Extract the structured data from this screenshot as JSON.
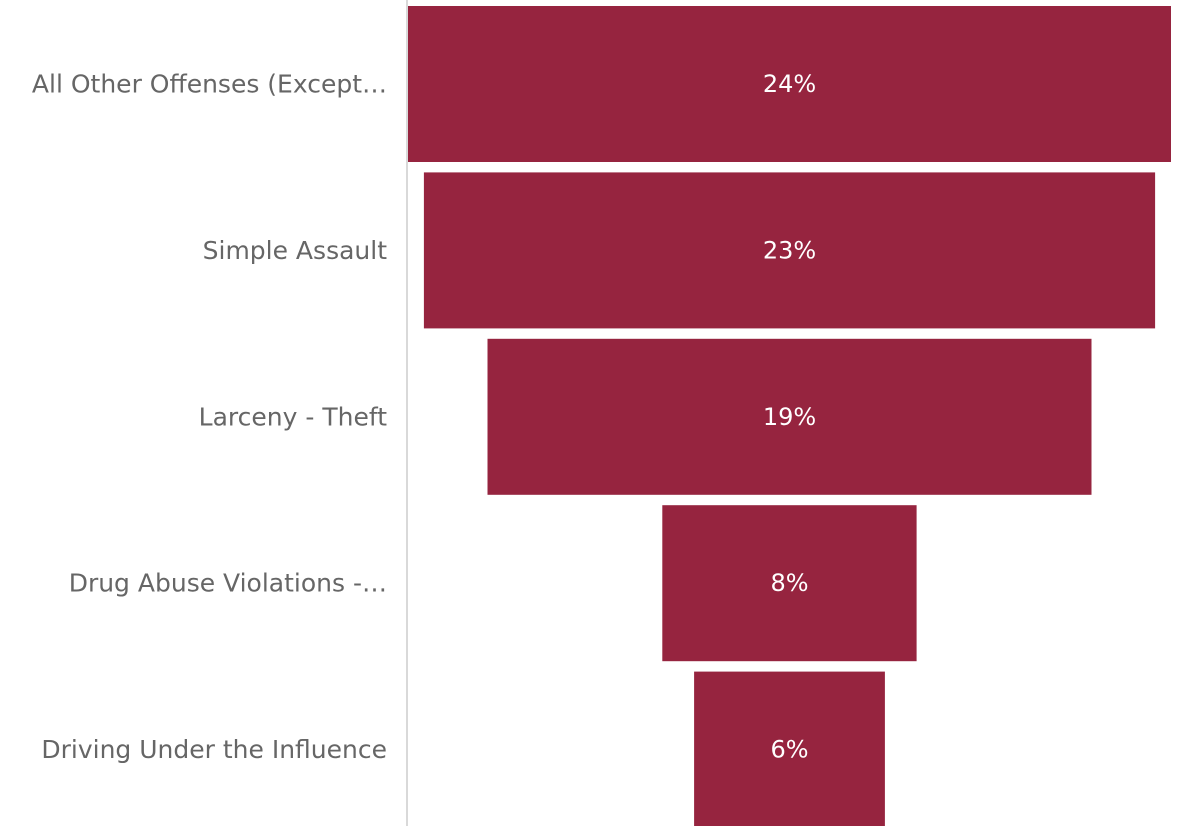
{
  "chart_data": {
    "type": "funnel",
    "title": "",
    "categories": [
      "All Other Offenses (Except…",
      "Simple Assault",
      "Larceny - Theft",
      "Drug Abuse Violations -…",
      "Driving Under the Influence"
    ],
    "values": [
      24,
      23,
      19,
      8,
      6
    ],
    "value_labels": [
      "24%",
      "23%",
      "19%",
      "8%",
      "6%"
    ],
    "bar_color": "#96243F",
    "label_color": "#666666",
    "value_label_color": "#ffffff",
    "axis_color": "#d9d9d9"
  }
}
